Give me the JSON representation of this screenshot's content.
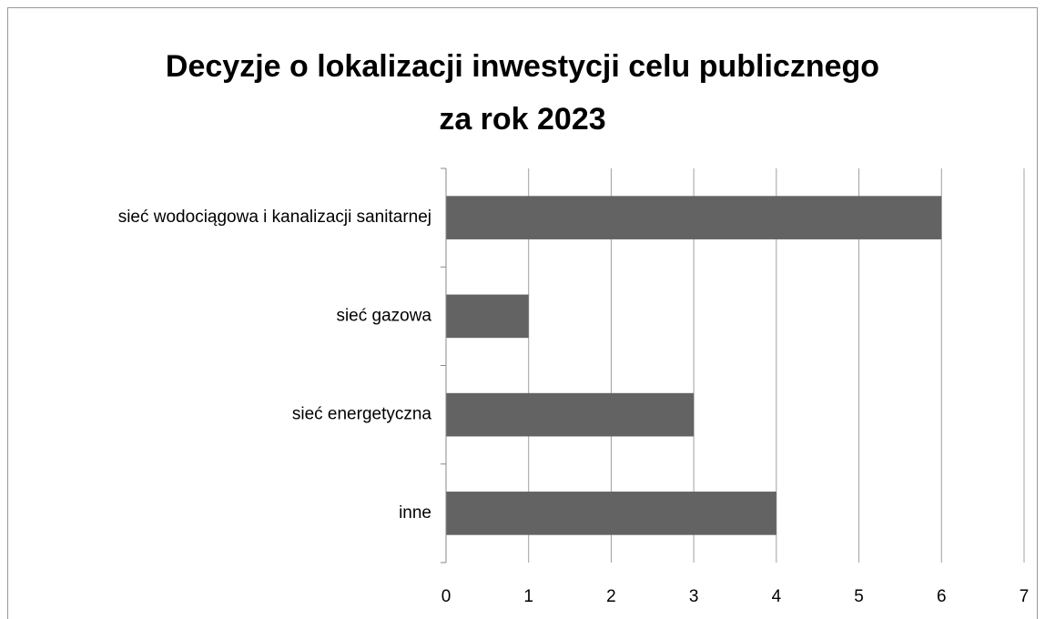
{
  "chart_data": {
    "type": "barh",
    "title": "Decyzje o lokalizacji inwestycji celu publicznego za rok 2023",
    "categories": [
      "sieć wodociągowa i kanalizacji sanitarnej",
      "sieć gazowa",
      "sieć energetyczna",
      "inne"
    ],
    "values": [
      6,
      1,
      3,
      4
    ],
    "color": "#636363",
    "xlim": [
      0,
      7
    ],
    "xticks": [
      0,
      1,
      2,
      3,
      4,
      5,
      6,
      7
    ],
    "grid": true
  }
}
